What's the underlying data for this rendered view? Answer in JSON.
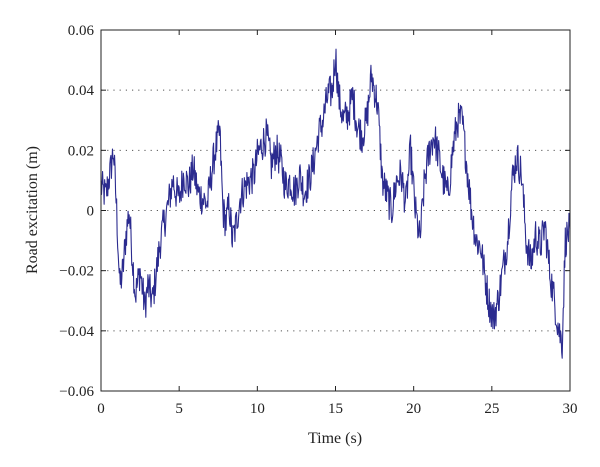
{
  "chart_data": {
    "type": "line",
    "title": "",
    "xlabel": "Time (s)",
    "ylabel": "Road excitation (m)",
    "xlim": [
      0,
      30
    ],
    "ylim": [
      -0.06,
      0.06
    ],
    "xticks": [
      0,
      5,
      10,
      15,
      20,
      25,
      30
    ],
    "yticks": [
      -0.06,
      -0.04,
      -0.02,
      0,
      0.02,
      0.04,
      0.06
    ],
    "xtick_labels": [
      "0",
      "5",
      "10",
      "15",
      "20",
      "25",
      "30"
    ],
    "ytick_labels": [
      "−0.06",
      "−0.04",
      "−0.02",
      "0",
      "0.02",
      "0.04",
      "0.06"
    ],
    "grid": "horizontal dotted",
    "line_color": "#2b2b8f",
    "series": [
      {
        "x": [
          0,
          0.3,
          0.6,
          0.8,
          1.0,
          1.2,
          1.4,
          1.6,
          1.8,
          2.0,
          2.2,
          2.5,
          2.8,
          3.0,
          3.3,
          3.6,
          3.8,
          4.0,
          4.3,
          4.6,
          4.8,
          5.0,
          5.3,
          5.6,
          5.9,
          6.2,
          6.5,
          6.8,
          7.0,
          7.3,
          7.6,
          7.8,
          8.0,
          8.2,
          8.4,
          8.6,
          8.9,
          9.2,
          9.5,
          9.8,
          10.0,
          10.3,
          10.6,
          10.9,
          11.2,
          11.5,
          11.8,
          12.1,
          12.4,
          12.7,
          13.0,
          13.3,
          13.6,
          13.9,
          14.2,
          14.5,
          14.8,
          15.0,
          15.2,
          15.5,
          15.8,
          16.1,
          16.4,
          16.7,
          17.0,
          17.3,
          17.5,
          17.7,
          18.0,
          18.3,
          18.6,
          18.9,
          19.2,
          19.5,
          19.8,
          20.1,
          20.4,
          20.7,
          21.0,
          21.3,
          21.6,
          21.9,
          22.2,
          22.5,
          22.8,
          23.1,
          23.4,
          23.7,
          24.0,
          24.3,
          24.5,
          24.8,
          25.1,
          25.4,
          25.7,
          26.0,
          26.3,
          26.6,
          26.9,
          27.2,
          27.5,
          27.8,
          28.1,
          28.4,
          28.7,
          29.0,
          29.3,
          29.5,
          29.7,
          30.0
        ],
        "y": [
          0.008,
          0.005,
          0.013,
          0.02,
          0.0,
          -0.025,
          -0.02,
          -0.008,
          0.0,
          -0.015,
          -0.028,
          -0.02,
          -0.032,
          -0.025,
          -0.03,
          -0.018,
          -0.01,
          -0.005,
          0.002,
          0.01,
          0.006,
          0.004,
          0.012,
          0.008,
          0.014,
          0.006,
          0.004,
          0.002,
          0.01,
          0.02,
          0.026,
          0.0,
          -0.004,
          0.002,
          -0.01,
          -0.006,
          0.004,
          0.008,
          0.01,
          0.012,
          0.018,
          0.022,
          0.025,
          0.015,
          0.02,
          0.016,
          0.008,
          0.01,
          0.006,
          0.012,
          0.006,
          0.01,
          0.016,
          0.025,
          0.03,
          0.038,
          0.04,
          0.052,
          0.038,
          0.03,
          0.032,
          0.038,
          0.028,
          0.025,
          0.03,
          0.045,
          0.04,
          0.035,
          0.01,
          0.005,
          0.0,
          0.01,
          0.012,
          0.002,
          0.02,
          0.0,
          -0.01,
          0.01,
          0.02,
          0.025,
          0.018,
          0.01,
          0.005,
          0.02,
          0.03,
          0.03,
          0.015,
          0.0,
          -0.01,
          -0.012,
          -0.02,
          -0.03,
          -0.036,
          -0.03,
          -0.02,
          -0.01,
          0.01,
          0.018,
          0.012,
          -0.01,
          -0.018,
          -0.008,
          -0.012,
          -0.005,
          -0.02,
          -0.03,
          -0.04,
          -0.044,
          -0.01,
          -0.006
        ]
      }
    ]
  }
}
